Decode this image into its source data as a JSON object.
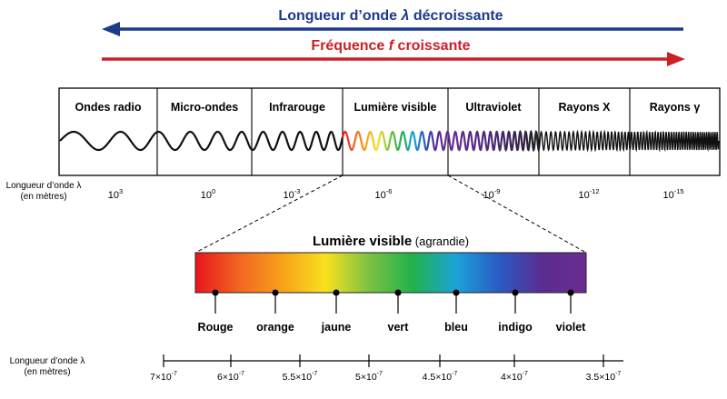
{
  "arrows": {
    "wavelength": {
      "label_prefix": "Longueur d’onde ",
      "symbol": "λ",
      "label_suffix": " décroissante",
      "color": "#1a3a8c"
    },
    "frequency": {
      "label_prefix": "Fréquence ",
      "symbol": "f",
      "label_suffix": " croissante",
      "color": "#cc1f26"
    }
  },
  "spectrum": {
    "bands": [
      {
        "label": "Ondes radio"
      },
      {
        "label": "Micro-ondes"
      },
      {
        "label": "Infrarouge"
      },
      {
        "label": "Lumière visible"
      },
      {
        "label": "Ultraviolet"
      },
      {
        "label": "Rayons X"
      },
      {
        "label": "Rayons γ"
      }
    ],
    "axis_title_line1": "Longueur d’onde λ",
    "axis_title_line2": "(en mètres)",
    "ticks": [
      {
        "base": "10",
        "exp": "3"
      },
      {
        "base": "10",
        "exp": "0"
      },
      {
        "base": "10",
        "exp": "-3"
      },
      {
        "base": "10",
        "exp": "-6"
      },
      {
        "base": "10",
        "exp": "-9"
      },
      {
        "base": "10",
        "exp": "-12"
      },
      {
        "base": "10",
        "exp": "-15"
      }
    ]
  },
  "visible": {
    "title_bold": "Lumière visible",
    "title_normal": " (agrandie)",
    "gradient_colors": [
      "#e8141c",
      "#f26522",
      "#f7a11a",
      "#f9e11e",
      "#7cc242",
      "#22b14c",
      "#1ca3d9",
      "#2b59c3",
      "#5b2c91",
      "#6a2c90"
    ],
    "colors": [
      {
        "label": "Rouge"
      },
      {
        "label": "orange"
      },
      {
        "label": "jaune"
      },
      {
        "label": "vert"
      },
      {
        "label": "bleu"
      },
      {
        "label": "indigo"
      },
      {
        "label": "violet"
      }
    ],
    "axis_title_line1": "Longueur d’onde λ",
    "axis_title_line2": "(en mètres)",
    "ticks": [
      {
        "mant": "7×10",
        "exp": "-7"
      },
      {
        "mant": "6×10",
        "exp": "-7"
      },
      {
        "mant": "5.5×10",
        "exp": "-7"
      },
      {
        "mant": "5×10",
        "exp": "-7"
      },
      {
        "mant": "4.5×10",
        "exp": "-7"
      },
      {
        "mant": "4×10",
        "exp": "-7"
      },
      {
        "mant": "3.5×10",
        "exp": "-7"
      }
    ]
  }
}
